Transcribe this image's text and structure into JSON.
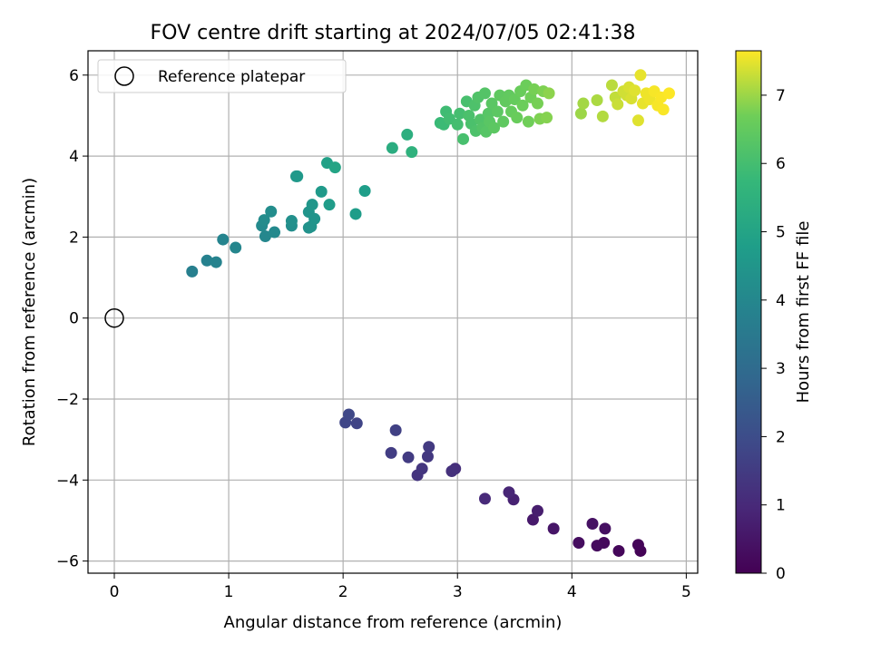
{
  "chart_data": {
    "type": "scatter",
    "title": "FOV centre drift starting at 2024/07/05 02:41:38",
    "xlabel": "Angular distance from reference (arcmin)",
    "ylabel": "Rotation from reference (arcmin)",
    "xlim": [
      -0.23,
      5.1
    ],
    "ylim": [
      -6.3,
      6.6
    ],
    "xticks": [
      0,
      1,
      2,
      3,
      4,
      5
    ],
    "yticks": [
      -6,
      -4,
      -2,
      0,
      2,
      4,
      6
    ],
    "xtick_labels": [
      "0",
      "1",
      "2",
      "3",
      "4",
      "5"
    ],
    "ytick_labels": [
      "−6",
      "−4",
      "−2",
      "0",
      "2",
      "4",
      "6"
    ],
    "grid": true,
    "legend": {
      "placement": "top-left",
      "entries": [
        "Reference platepar"
      ]
    },
    "reference_point": {
      "x": 0,
      "y": 0,
      "marker": "open-circle"
    },
    "colorbar": {
      "label": "Hours from first FF file",
      "colormap": "viridis",
      "range": [
        0,
        7.65
      ],
      "ticks": [
        0,
        1,
        2,
        3,
        4,
        5,
        6,
        7
      ],
      "tick_labels": [
        "0",
        "1",
        "2",
        "3",
        "4",
        "5",
        "6",
        "7"
      ]
    },
    "series": [
      {
        "points": [
          {
            "x": 4.6,
            "y": -5.75,
            "c": 0.05
          },
          {
            "x": 4.58,
            "y": -5.6,
            "c": 0.1
          },
          {
            "x": 4.41,
            "y": -5.75,
            "c": 0.15
          },
          {
            "x": 4.28,
            "y": -5.55,
            "c": 0.2
          },
          {
            "x": 4.22,
            "y": -5.62,
            "c": 0.25
          },
          {
            "x": 4.06,
            "y": -5.55,
            "c": 0.3
          },
          {
            "x": 4.29,
            "y": -5.2,
            "c": 0.35
          },
          {
            "x": 4.18,
            "y": -5.08,
            "c": 0.4
          },
          {
            "x": 3.84,
            "y": -5.2,
            "c": 0.5
          },
          {
            "x": 3.66,
            "y": -4.98,
            "c": 0.6
          },
          {
            "x": 3.7,
            "y": -4.76,
            "c": 0.7
          },
          {
            "x": 3.49,
            "y": -4.48,
            "c": 0.8
          },
          {
            "x": 3.45,
            "y": -4.3,
            "c": 0.9
          },
          {
            "x": 3.24,
            "y": -4.46,
            "c": 1.0
          },
          {
            "x": 2.98,
            "y": -3.72,
            "c": 1.15
          },
          {
            "x": 2.95,
            "y": -3.78,
            "c": 1.2
          },
          {
            "x": 2.65,
            "y": -3.88,
            "c": 1.3
          },
          {
            "x": 2.69,
            "y": -3.72,
            "c": 1.35
          },
          {
            "x": 2.74,
            "y": -3.42,
            "c": 1.4
          },
          {
            "x": 2.75,
            "y": -3.18,
            "c": 1.45
          },
          {
            "x": 2.57,
            "y": -3.44,
            "c": 1.5
          },
          {
            "x": 2.42,
            "y": -3.33,
            "c": 1.55
          },
          {
            "x": 2.46,
            "y": -2.77,
            "c": 1.65
          },
          {
            "x": 2.12,
            "y": -2.6,
            "c": 1.75
          },
          {
            "x": 2.02,
            "y": -2.58,
            "c": 1.8
          },
          {
            "x": 2.05,
            "y": -2.38,
            "c": 1.85
          },
          {
            "x": 0.68,
            "y": 1.15,
            "c": 3.7
          },
          {
            "x": 0.81,
            "y": 1.42,
            "c": 3.8
          },
          {
            "x": 0.89,
            "y": 1.38,
            "c": 3.85
          },
          {
            "x": 0.95,
            "y": 1.94,
            "c": 3.9
          },
          {
            "x": 1.06,
            "y": 1.74,
            "c": 3.95
          },
          {
            "x": 1.32,
            "y": 2.02,
            "c": 4.0
          },
          {
            "x": 1.4,
            "y": 2.12,
            "c": 4.05
          },
          {
            "x": 1.29,
            "y": 2.28,
            "c": 4.1
          },
          {
            "x": 1.31,
            "y": 2.42,
            "c": 4.15
          },
          {
            "x": 1.37,
            "y": 2.63,
            "c": 4.2
          },
          {
            "x": 1.55,
            "y": 2.28,
            "c": 4.25
          },
          {
            "x": 1.55,
            "y": 2.4,
            "c": 4.3
          },
          {
            "x": 1.7,
            "y": 2.23,
            "c": 4.35
          },
          {
            "x": 1.72,
            "y": 2.26,
            "c": 4.4
          },
          {
            "x": 1.7,
            "y": 2.62,
            "c": 4.45
          },
          {
            "x": 1.75,
            "y": 2.45,
            "c": 4.45
          },
          {
            "x": 1.73,
            "y": 2.8,
            "c": 4.5
          },
          {
            "x": 1.59,
            "y": 3.5,
            "c": 4.55
          },
          {
            "x": 1.6,
            "y": 3.5,
            "c": 4.6
          },
          {
            "x": 1.81,
            "y": 3.12,
            "c": 4.65
          },
          {
            "x": 1.88,
            "y": 2.8,
            "c": 4.7
          },
          {
            "x": 2.11,
            "y": 2.57,
            "c": 4.75
          },
          {
            "x": 2.19,
            "y": 3.14,
            "c": 4.8
          },
          {
            "x": 1.86,
            "y": 3.83,
            "c": 4.9
          },
          {
            "x": 1.93,
            "y": 3.72,
            "c": 5.0
          },
          {
            "x": 2.43,
            "y": 4.2,
            "c": 5.3
          },
          {
            "x": 2.56,
            "y": 4.53,
            "c": 5.4
          },
          {
            "x": 2.6,
            "y": 4.1,
            "c": 5.5
          },
          {
            "x": 2.85,
            "y": 4.82,
            "c": 5.8
          },
          {
            "x": 2.88,
            "y": 4.78,
            "c": 5.85
          },
          {
            "x": 2.9,
            "y": 5.1,
            "c": 5.9
          },
          {
            "x": 2.93,
            "y": 4.92,
            "c": 5.95
          },
          {
            "x": 3.0,
            "y": 4.78,
            "c": 6.0
          },
          {
            "x": 3.02,
            "y": 5.05,
            "c": 6.0
          },
          {
            "x": 3.05,
            "y": 4.42,
            "c": 6.05
          },
          {
            "x": 3.08,
            "y": 5.35,
            "c": 6.05
          },
          {
            "x": 3.1,
            "y": 5.0,
            "c": 6.1
          },
          {
            "x": 3.12,
            "y": 4.8,
            "c": 6.1
          },
          {
            "x": 3.15,
            "y": 5.25,
            "c": 6.15
          },
          {
            "x": 3.16,
            "y": 4.62,
            "c": 6.15
          },
          {
            "x": 3.18,
            "y": 5.45,
            "c": 6.2
          },
          {
            "x": 3.2,
            "y": 4.9,
            "c": 6.2
          },
          {
            "x": 3.22,
            "y": 4.7,
            "c": 6.25
          },
          {
            "x": 3.24,
            "y": 5.55,
            "c": 6.25
          },
          {
            "x": 3.25,
            "y": 4.6,
            "c": 6.3
          },
          {
            "x": 3.27,
            "y": 5.05,
            "c": 6.3
          },
          {
            "x": 3.28,
            "y": 4.85,
            "c": 6.35
          },
          {
            "x": 3.3,
            "y": 5.3,
            "c": 6.35
          },
          {
            "x": 3.32,
            "y": 4.7,
            "c": 6.4
          },
          {
            "x": 3.35,
            "y": 5.1,
            "c": 6.4
          },
          {
            "x": 3.37,
            "y": 5.5,
            "c": 6.45
          },
          {
            "x": 3.4,
            "y": 4.85,
            "c": 6.45
          },
          {
            "x": 3.42,
            "y": 5.35,
            "c": 6.5
          },
          {
            "x": 3.45,
            "y": 5.5,
            "c": 6.5
          },
          {
            "x": 3.47,
            "y": 5.1,
            "c": 6.55
          },
          {
            "x": 3.5,
            "y": 5.4,
            "c": 6.55
          },
          {
            "x": 3.52,
            "y": 4.95,
            "c": 6.6
          },
          {
            "x": 3.55,
            "y": 5.6,
            "c": 6.6
          },
          {
            "x": 3.57,
            "y": 5.25,
            "c": 6.65
          },
          {
            "x": 3.6,
            "y": 5.75,
            "c": 6.65
          },
          {
            "x": 3.62,
            "y": 4.85,
            "c": 6.7
          },
          {
            "x": 3.64,
            "y": 5.45,
            "c": 6.7
          },
          {
            "x": 3.67,
            "y": 5.65,
            "c": 6.75
          },
          {
            "x": 3.7,
            "y": 5.3,
            "c": 6.75
          },
          {
            "x": 3.72,
            "y": 4.92,
            "c": 6.8
          },
          {
            "x": 3.75,
            "y": 5.6,
            "c": 6.8
          },
          {
            "x": 3.78,
            "y": 4.95,
            "c": 6.85
          },
          {
            "x": 3.8,
            "y": 5.55,
            "c": 6.9
          },
          {
            "x": 4.08,
            "y": 5.05,
            "c": 7.0
          },
          {
            "x": 4.1,
            "y": 5.3,
            "c": 7.05
          },
          {
            "x": 4.22,
            "y": 5.38,
            "c": 7.1
          },
          {
            "x": 4.27,
            "y": 4.98,
            "c": 7.15
          },
          {
            "x": 4.35,
            "y": 5.75,
            "c": 7.2
          },
          {
            "x": 4.38,
            "y": 5.45,
            "c": 7.25
          },
          {
            "x": 4.4,
            "y": 5.28,
            "c": 7.3
          },
          {
            "x": 4.45,
            "y": 5.6,
            "c": 7.35
          },
          {
            "x": 4.48,
            "y": 5.5,
            "c": 7.35
          },
          {
            "x": 4.5,
            "y": 5.7,
            "c": 7.4
          },
          {
            "x": 4.52,
            "y": 5.42,
            "c": 7.4
          },
          {
            "x": 4.55,
            "y": 5.62,
            "c": 7.45
          },
          {
            "x": 4.58,
            "y": 4.88,
            "c": 7.45
          },
          {
            "x": 4.6,
            "y": 6.0,
            "c": 7.5
          },
          {
            "x": 4.62,
            "y": 5.3,
            "c": 7.5
          },
          {
            "x": 4.65,
            "y": 5.55,
            "c": 7.55
          },
          {
            "x": 4.68,
            "y": 5.4,
            "c": 7.55
          },
          {
            "x": 4.72,
            "y": 5.6,
            "c": 7.6
          },
          {
            "x": 4.75,
            "y": 5.25,
            "c": 7.6
          },
          {
            "x": 4.78,
            "y": 5.45,
            "c": 7.62
          },
          {
            "x": 4.8,
            "y": 5.15,
            "c": 7.62
          },
          {
            "x": 4.85,
            "y": 5.55,
            "c": 7.64
          }
        ]
      }
    ]
  }
}
